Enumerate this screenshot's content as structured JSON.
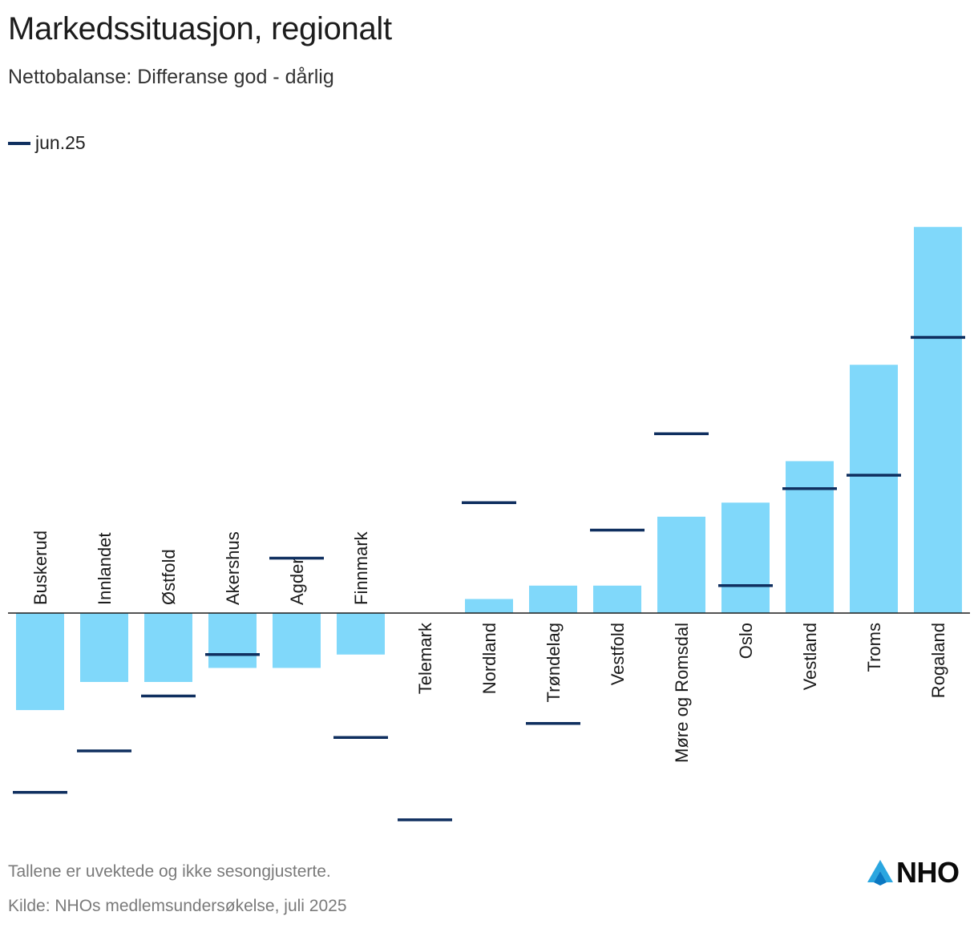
{
  "chart_data": {
    "type": "bar",
    "title": "Markedssituasjon, regionalt",
    "subtitle": "Nettobalanse: Differanse god - dårlig",
    "legend": [
      {
        "name": "jun.25",
        "color": "#0f2f5f",
        "marker": "line"
      }
    ],
    "legend_position": "top-left",
    "bar_color": "#80d8fa",
    "ylim": [
      -31,
      57
    ],
    "categories": [
      "Buskerud",
      "Innlandet",
      "Østfold",
      "Akershus",
      "Agder",
      "Finnmark",
      "Telemark",
      "Nordland",
      "Trøndelag",
      "Vestfold",
      "Møre og Romsdal",
      "Oslo",
      "Vestland",
      "Troms",
      "Rogaland"
    ],
    "series": [
      {
        "name": "Nettobalanse",
        "type": "bar",
        "values": [
          -14.5,
          -10.3,
          -10.3,
          -8.2,
          -8.2,
          -6.2,
          0,
          2.1,
          4.1,
          4.1,
          14.4,
          16.5,
          22.7,
          37.1,
          57.7
        ]
      },
      {
        "name": "jun.25",
        "type": "marker",
        "values": [
          -26.8,
          -20.6,
          -12.4,
          -6.2,
          8.2,
          -18.6,
          -30.9,
          16.5,
          -16.5,
          12.4,
          26.8,
          4.1,
          18.6,
          20.6,
          41.2
        ]
      }
    ]
  },
  "footnote": "Tallene er uvektede og ikke sesongjusterte.",
  "source": "Kilde: NHOs medlemsundersøkelse, juli 2025",
  "logo": {
    "text": "NHO",
    "colors": {
      "light": "#7fd0f5",
      "mid": "#2aa6e0",
      "dark": "#0a78c2"
    }
  }
}
